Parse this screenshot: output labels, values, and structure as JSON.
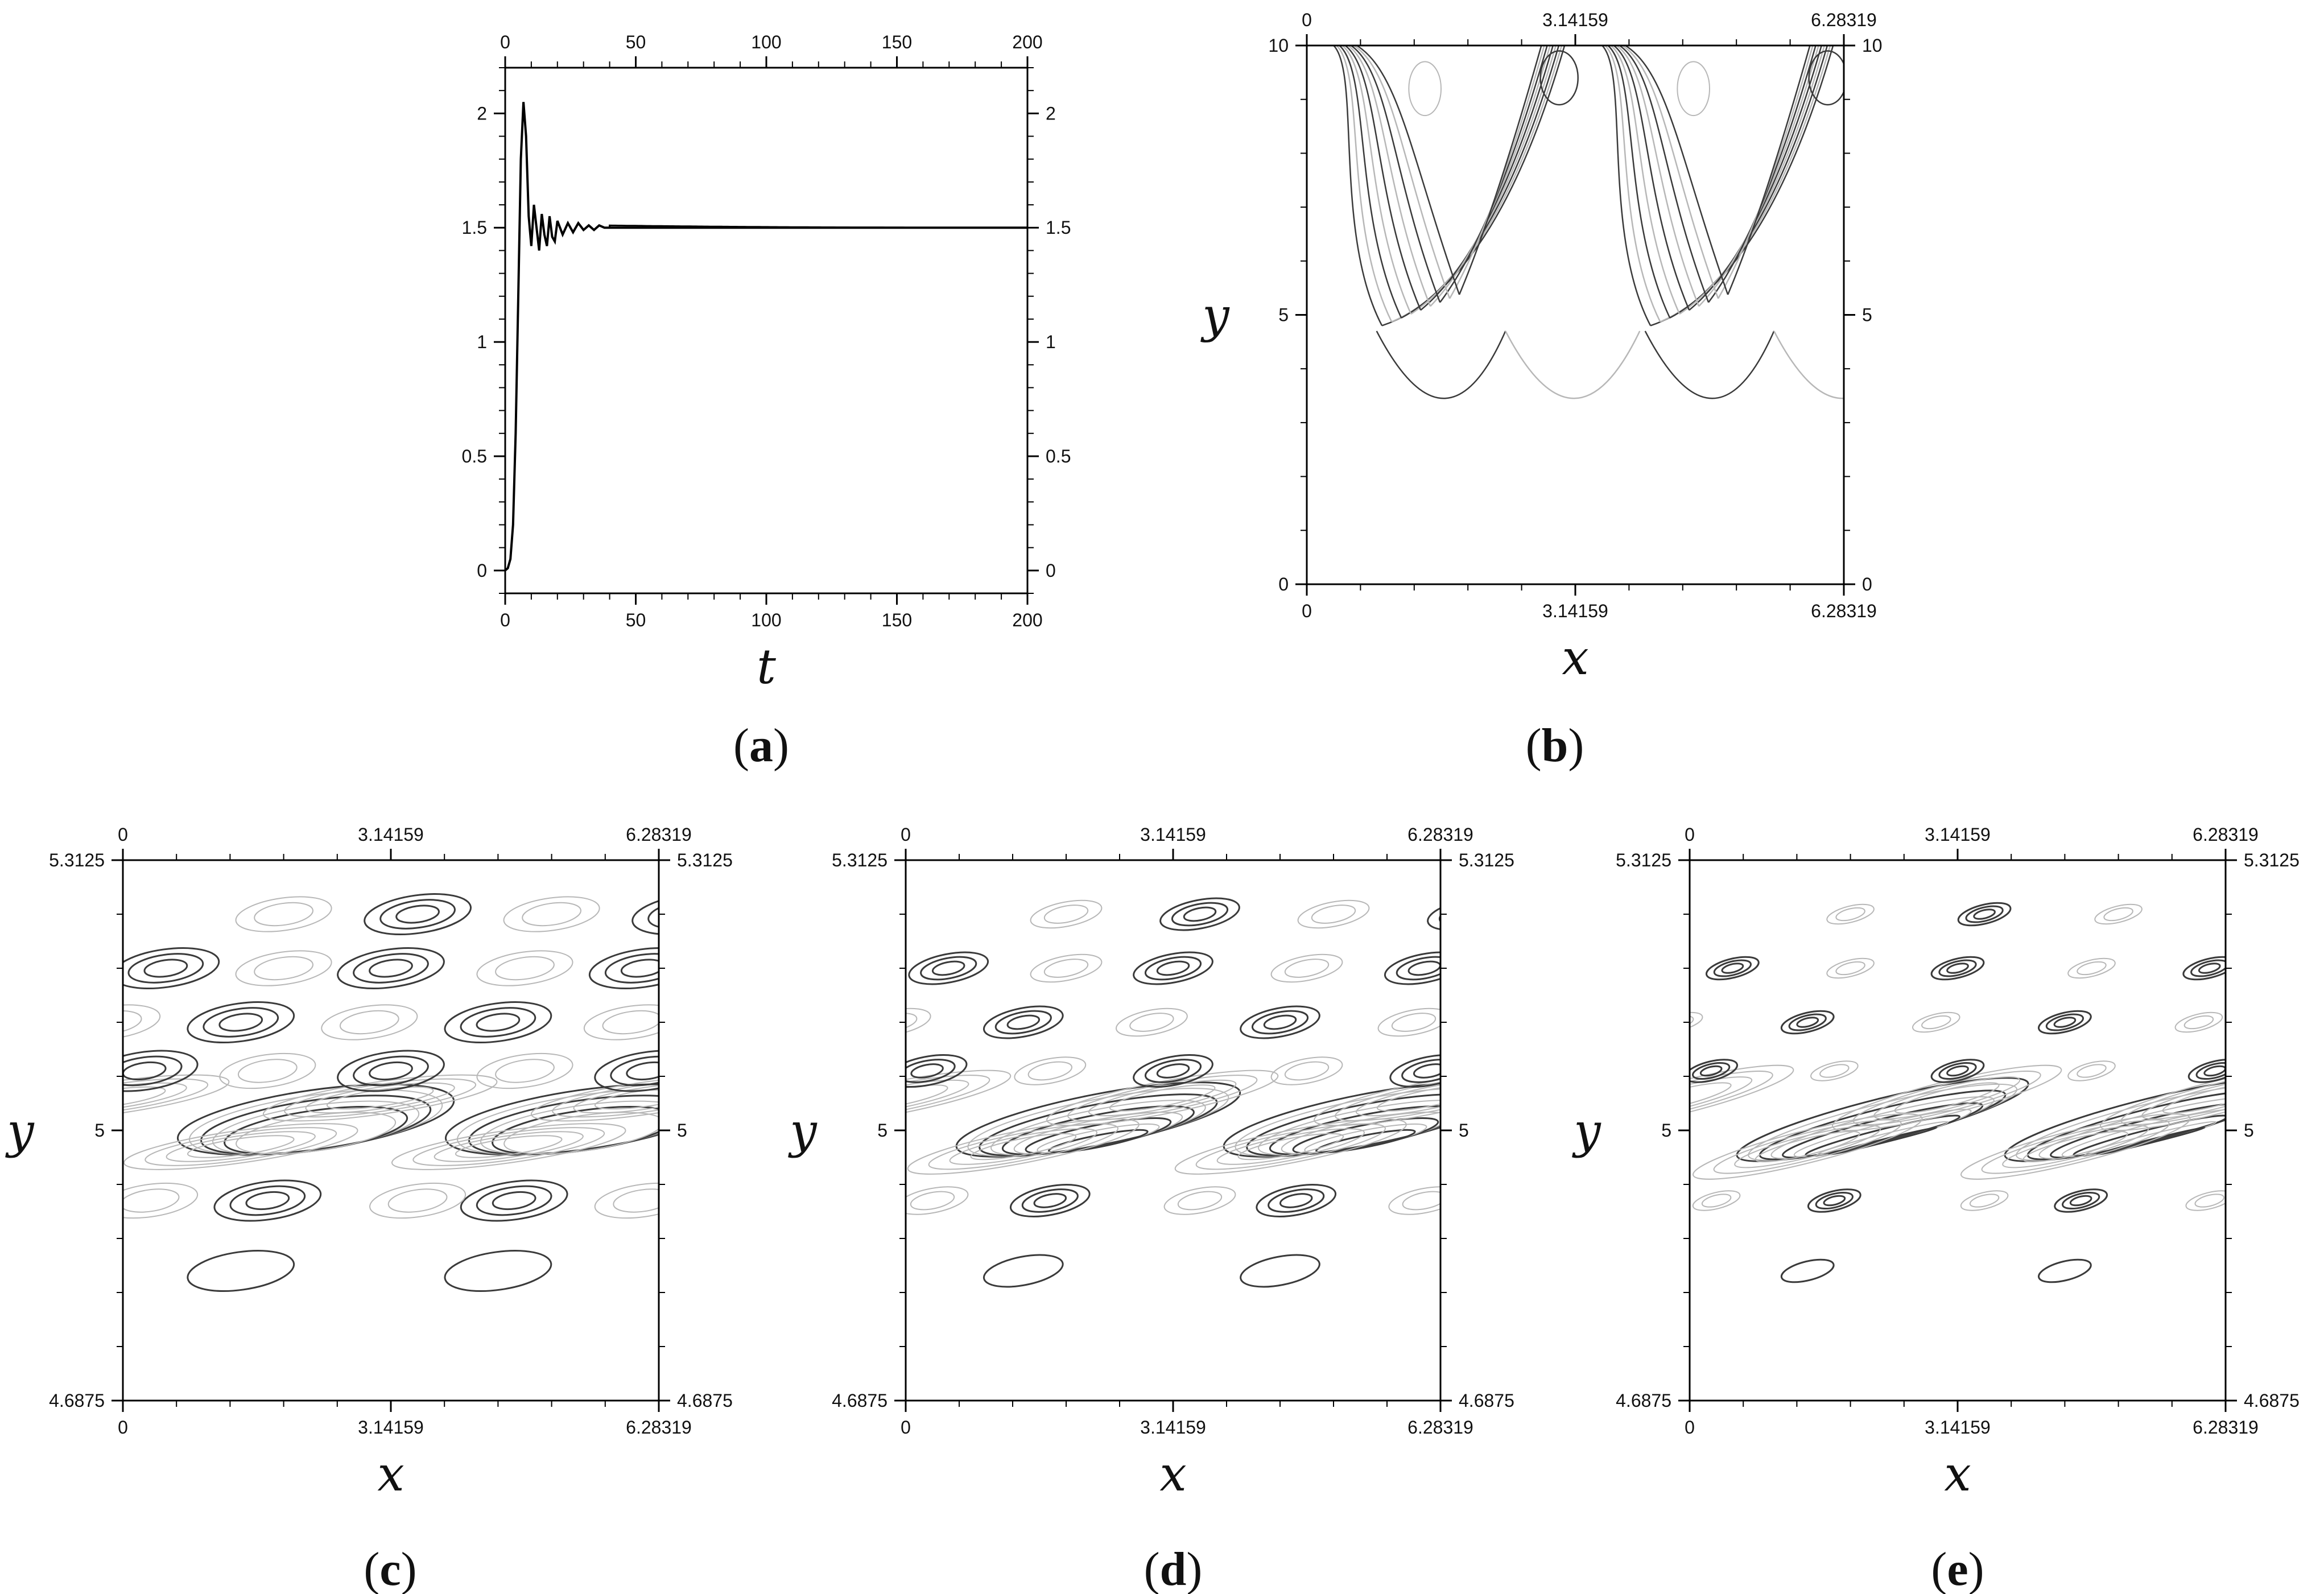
{
  "figure": {
    "panels": [
      {
        "id": "a",
        "caption": "a"
      },
      {
        "id": "b",
        "caption": "b"
      },
      {
        "id": "c",
        "caption": "c"
      },
      {
        "id": "d",
        "caption": "d"
      },
      {
        "id": "e",
        "caption": "e"
      }
    ]
  },
  "chart_data": [
    {
      "panel": "a",
      "type": "line",
      "xlabel": "t",
      "ylabel": "",
      "xlim": [
        0,
        200
      ],
      "ylim": [
        -0.1,
        2.2
      ],
      "xticks": [
        "0",
        "50",
        "100",
        "150",
        "200"
      ],
      "yticks": [
        "0",
        "0.5",
        "1",
        "1.5",
        "2"
      ],
      "series": [
        {
          "color": "#000000",
          "x": [
            0,
            1,
            2,
            3,
            4,
            5,
            6,
            7,
            8,
            9,
            10,
            11,
            12,
            13,
            14,
            15,
            16,
            17,
            18,
            19,
            20,
            22,
            24,
            26,
            28,
            30,
            32,
            34,
            36,
            38,
            40,
            45,
            50,
            60,
            80,
            100,
            120,
            150,
            200
          ],
          "y": [
            0,
            0.01,
            0.05,
            0.2,
            0.6,
            1.2,
            1.8,
            2.05,
            1.9,
            1.55,
            1.42,
            1.6,
            1.5,
            1.4,
            1.56,
            1.47,
            1.42,
            1.55,
            1.46,
            1.44,
            1.53,
            1.47,
            1.52,
            1.48,
            1.52,
            1.49,
            1.51,
            1.49,
            1.51,
            1.5,
            1.5,
            1.5,
            1.5,
            1.5,
            1.5,
            1.5,
            1.5,
            1.5,
            1.5
          ]
        }
      ],
      "grid": false
    },
    {
      "panel": "b",
      "type": "contour",
      "xlabel": "x",
      "ylabel": "y",
      "xlim": [
        0,
        6.28319
      ],
      "ylim": [
        0,
        10
      ],
      "xticks": [
        "0",
        "3.14159",
        "6.28319"
      ],
      "yticks": [
        "0",
        "5",
        "10"
      ],
      "grid": false
    },
    {
      "panel": "c",
      "type": "contour",
      "xlabel": "x",
      "ylabel": "y",
      "xlim": [
        0,
        6.28319
      ],
      "ylim": [
        4.6875,
        5.3125
      ],
      "xticks": [
        "0",
        "3.14159",
        "6.28319"
      ],
      "yticks": [
        "4.6875",
        "5",
        "5.3125"
      ],
      "grid": false
    },
    {
      "panel": "d",
      "type": "contour",
      "xlabel": "x",
      "ylabel": "y",
      "xlim": [
        0,
        6.28319
      ],
      "ylim": [
        4.6875,
        5.3125
      ],
      "xticks": [
        "0",
        "3.14159",
        "6.28319"
      ],
      "yticks": [
        "4.6875",
        "5",
        "5.3125"
      ],
      "grid": false
    },
    {
      "panel": "e",
      "type": "contour",
      "xlabel": "x",
      "ylabel": "y",
      "xlim": [
        0,
        6.28319
      ],
      "ylim": [
        4.6875,
        5.3125
      ],
      "xticks": [
        "0",
        "3.14159",
        "6.28319"
      ],
      "yticks": [
        "4.6875",
        "5",
        "5.3125"
      ],
      "grid": false
    }
  ]
}
